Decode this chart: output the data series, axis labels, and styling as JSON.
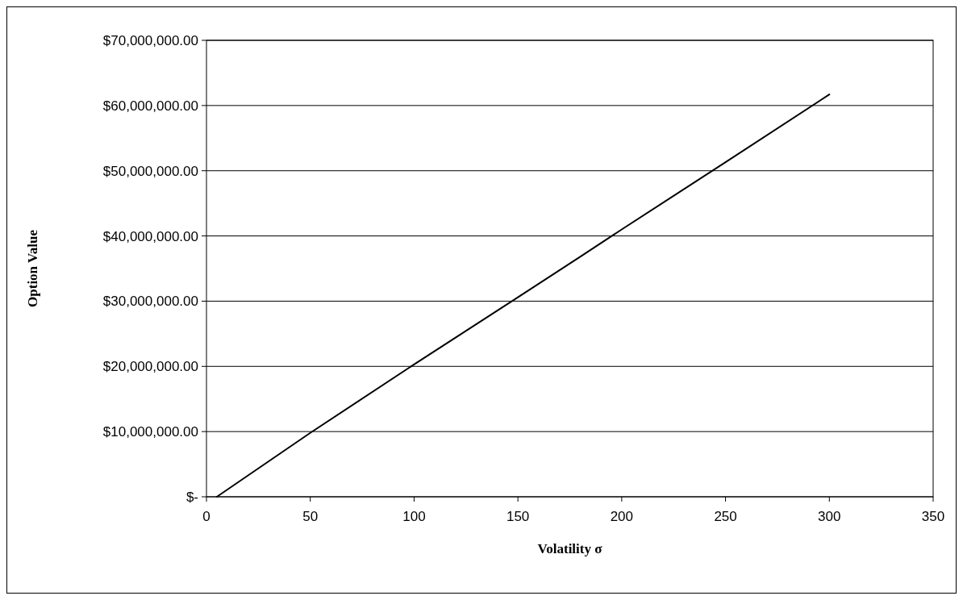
{
  "chart_data": {
    "type": "line",
    "xlabel": "Volatility σ",
    "ylabel": "Option Value",
    "x": [
      5,
      50,
      100,
      150,
      180,
      200,
      250,
      300
    ],
    "series": [
      {
        "color": "#000000",
        "values": [
          0,
          9800000,
          20300000,
          30600000,
          36800000,
          41000000,
          51300000,
          61700000
        ]
      }
    ],
    "xlim": [
      0,
      350
    ],
    "xticks": [
      0,
      50,
      100,
      150,
      200,
      250,
      300,
      350
    ],
    "ylim": [
      0,
      70000000
    ],
    "yticks": [
      {
        "value": 0,
        "label": "$-"
      },
      {
        "value": 10000000,
        "label": "$10,000,000.00"
      },
      {
        "value": 20000000,
        "label": "$20,000,000.00"
      },
      {
        "value": 30000000,
        "label": "$30,000,000.00"
      },
      {
        "value": 40000000,
        "label": "$40,000,000.00"
      },
      {
        "value": 50000000,
        "label": "$50,000,000.00"
      },
      {
        "value": 60000000,
        "label": "$60,000,000.00"
      },
      {
        "value": 70000000,
        "label": "$70,000,000.00"
      }
    ],
    "grid": "y",
    "marker": "none",
    "line_style": "solid"
  }
}
